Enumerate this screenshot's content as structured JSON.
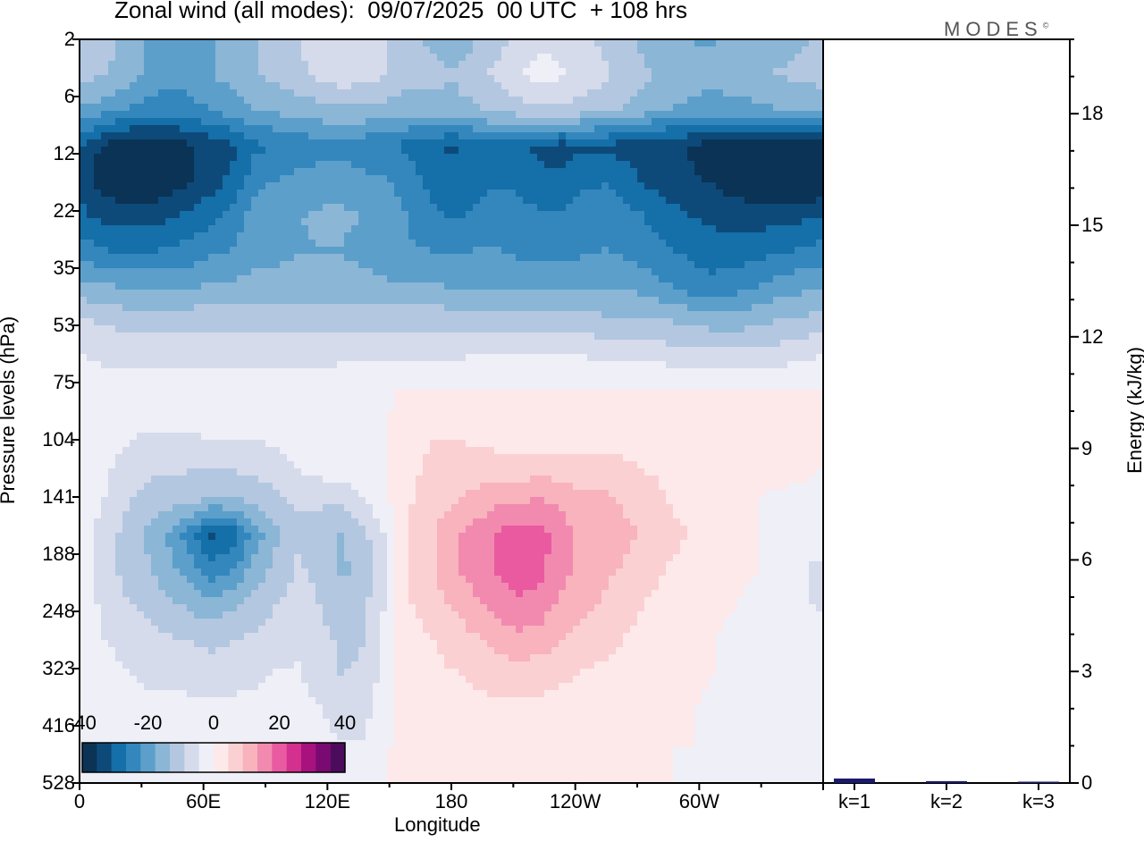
{
  "title": "Zonal wind (all modes):  09/07/2025  00 UTC  + 108 hrs",
  "brand": "MODES",
  "brand_mark": "©",
  "chart_data": [
    {
      "type": "heatmap",
      "variable": "Zonal wind",
      "xlabel": "Longitude",
      "ylabel": "Pressure levels (hPa)",
      "x_ticks": [
        "0",
        "60E",
        "120E",
        "180",
        "120W",
        "60W"
      ],
      "y_ticks": [
        "2",
        "6",
        "12",
        "22",
        "35",
        "53",
        "75",
        "104",
        "141",
        "188",
        "248",
        "323",
        "416",
        "528"
      ],
      "colorbar": {
        "ticks": [
          "-40",
          "-20",
          "0",
          "20",
          "40"
        ],
        "colors": [
          "#0a3355",
          "#0d4a7a",
          "#156fa8",
          "#3387bd",
          "#5c9fcb",
          "#8bb6d6",
          "#b3c7e0",
          "#d5dbeb",
          "#efeff7",
          "#fde9ea",
          "#fbd0d3",
          "#f8b3bd",
          "#f28ab0",
          "#e95aa0",
          "#d4308f",
          "#a8127e",
          "#7a0a72",
          "#4d0b5c"
        ],
        "range": [
          -40,
          40
        ]
      },
      "grid_values": [
        [
          -10,
          -11,
          -14,
          -18,
          -22,
          -21,
          -18,
          -16,
          -14,
          -12,
          -9,
          -6,
          -5,
          -7,
          -9,
          -12,
          -14,
          -16,
          -14,
          -11,
          -7,
          -5,
          -6,
          -8,
          -10,
          -12,
          -15,
          -17,
          -18,
          -18,
          -17,
          -16,
          -15,
          -14,
          -13
        ],
        [
          -12,
          -13,
          -15,
          -18,
          -21,
          -20,
          -18,
          -16,
          -14,
          -12,
          -10,
          -8,
          -6,
          -7,
          -9,
          -12,
          -12,
          -13,
          -11,
          -8,
          -5,
          -3,
          -4,
          -6,
          -8,
          -10,
          -13,
          -15,
          -16,
          -16,
          -15,
          -14,
          -13,
          -12,
          -11
        ],
        [
          -18,
          -20,
          -22,
          -24,
          -25,
          -24,
          -22,
          -20,
          -18,
          -17,
          -16,
          -15,
          -14,
          -14,
          -15,
          -16,
          -15,
          -15,
          -14,
          -12,
          -11,
          -10,
          -10,
          -11,
          -12,
          -14,
          -16,
          -18,
          -19,
          -20,
          -20,
          -19,
          -18,
          -18,
          -17
        ],
        [
          -30,
          -36,
          -39,
          -40,
          -38,
          -36,
          -34,
          -32,
          -28,
          -26,
          -25,
          -24,
          -24,
          -25,
          -26,
          -28,
          -30,
          -32,
          -30,
          -28,
          -30,
          -32,
          -33,
          -32,
          -32,
          -33,
          -34,
          -35,
          -36,
          -38,
          -38,
          -40,
          -41,
          -40,
          -38
        ],
        [
          -32,
          -38,
          -40,
          -41,
          -39,
          -36,
          -33,
          -30,
          -24,
          -22,
          -21,
          -20,
          -20,
          -21,
          -22,
          -24,
          -28,
          -30,
          -29,
          -27,
          -28,
          -30,
          -30,
          -28,
          -27,
          -29,
          -32,
          -34,
          -35,
          -36,
          -38,
          -40,
          -41,
          -41,
          -40
        ],
        [
          -30,
          -32,
          -33,
          -33,
          -32,
          -30,
          -28,
          -25,
          -20,
          -18,
          -18,
          -17,
          -17,
          -18,
          -20,
          -22,
          -25,
          -27,
          -26,
          -24,
          -24,
          -26,
          -26,
          -24,
          -24,
          -25,
          -27,
          -29,
          -31,
          -32,
          -33,
          -33,
          -33,
          -32,
          -31
        ],
        [
          -24,
          -26,
          -27,
          -27,
          -26,
          -25,
          -23,
          -22,
          -20,
          -19,
          -18,
          -18,
          -18,
          -19,
          -20,
          -22,
          -22,
          -23,
          -22,
          -22,
          -23,
          -24,
          -24,
          -23,
          -22,
          -23,
          -25,
          -26,
          -28,
          -29,
          -29,
          -28,
          -27,
          -26,
          -25
        ],
        [
          -16,
          -17,
          -18,
          -18,
          -18,
          -18,
          -17,
          -17,
          -16,
          -16,
          -16,
          -16,
          -16,
          -16,
          -17,
          -17,
          -17,
          -18,
          -18,
          -18,
          -18,
          -18,
          -18,
          -18,
          -18,
          -18,
          -20,
          -22,
          -24,
          -25,
          -24,
          -22,
          -20,
          -19,
          -18
        ],
        [
          -8,
          -9,
          -10,
          -10,
          -10,
          -10,
          -10,
          -10,
          -10,
          -10,
          -10,
          -10,
          -10,
          -10,
          -10,
          -10,
          -10,
          -10,
          -10,
          -10,
          -10,
          -10,
          -10,
          -11,
          -12,
          -12,
          -12,
          -13,
          -14,
          -15,
          -15,
          -14,
          -13,
          -12,
          -11
        ],
        [
          -4,
          -5,
          -6,
          -6,
          -6,
          -6,
          -6,
          -6,
          -6,
          -6,
          -6,
          -6,
          -5,
          -5,
          -5,
          -5,
          -5,
          -5,
          -4,
          -4,
          -4,
          -4,
          -4,
          -4,
          -5,
          -5,
          -5,
          -6,
          -6,
          -7,
          -7,
          -7,
          -6,
          -5,
          -4
        ],
        [
          -1,
          -2,
          -2,
          -2,
          -2,
          -2,
          -2,
          -2,
          -2,
          -2,
          -2,
          -1,
          -1,
          -1,
          -1,
          1,
          1,
          1,
          1,
          1,
          1,
          1,
          1,
          1,
          1,
          1,
          1,
          1,
          1,
          1,
          1,
          1,
          1,
          1,
          0
        ],
        [
          0,
          -1,
          -3,
          -4,
          -4,
          -4,
          -3,
          -3,
          -3,
          -3,
          -2,
          -1,
          -1,
          -1,
          0,
          2,
          4,
          4,
          3,
          2,
          2,
          2,
          2,
          2,
          2,
          2,
          2,
          1,
          1,
          2,
          3,
          4,
          4,
          2,
          1
        ],
        [
          -1,
          -3,
          -6,
          -8,
          -8,
          -8,
          -8,
          -8,
          -7,
          -6,
          -4,
          -2,
          -1,
          -1,
          0,
          3,
          5,
          6,
          6,
          6,
          6,
          6,
          6,
          6,
          6,
          5,
          4,
          4,
          3,
          3,
          3,
          3,
          2,
          1,
          0
        ],
        [
          -2,
          -4,
          -8,
          -10,
          -11,
          -12,
          -14,
          -14,
          -12,
          -10,
          -8,
          -8,
          -8,
          -4,
          -1,
          4,
          6,
          8,
          10,
          12,
          12,
          14,
          12,
          10,
          10,
          8,
          6,
          4,
          3,
          2,
          1,
          0,
          -1,
          -1,
          -1
        ],
        [
          -2,
          -6,
          -10,
          -14,
          -18,
          -24,
          -32,
          -30,
          -20,
          -14,
          -10,
          -12,
          -14,
          -10,
          -4,
          5,
          8,
          12,
          15,
          18,
          21,
          20,
          16,
          12,
          12,
          10,
          8,
          6,
          4,
          2,
          1,
          0,
          -1,
          -2,
          -2
        ],
        [
          -2,
          -6,
          -10,
          -12,
          -16,
          -20,
          -25,
          -22,
          -16,
          -12,
          -8,
          -10,
          -14,
          -12,
          -5,
          5,
          8,
          12,
          15,
          18,
          20,
          19,
          15,
          12,
          10,
          8,
          6,
          4,
          3,
          2,
          1,
          0,
          -1,
          -4,
          -6
        ],
        [
          -2,
          -5,
          -8,
          -10,
          -12,
          -14,
          -16,
          -14,
          -11,
          -9,
          -7,
          -9,
          -12,
          -10,
          -4,
          4,
          6,
          9,
          12,
          15,
          17,
          16,
          12,
          10,
          8,
          6,
          4,
          3,
          2,
          1,
          0,
          -1,
          -2,
          -4,
          -5
        ],
        [
          -2,
          -4,
          -6,
          -7,
          -8,
          -9,
          -10,
          -9,
          -8,
          -6,
          -5,
          -7,
          -10,
          -9,
          -3,
          3,
          4,
          6,
          8,
          10,
          12,
          11,
          9,
          7,
          6,
          4,
          3,
          2,
          1,
          0,
          -1,
          -1,
          -2,
          -3,
          -3
        ],
        [
          -1,
          -2,
          -4,
          -5,
          -5,
          -6,
          -6,
          -6,
          -5,
          -4,
          -4,
          -6,
          -9,
          -8,
          -2,
          2,
          3,
          4,
          5,
          6,
          6,
          6,
          5,
          4,
          3,
          2,
          2,
          1,
          1,
          0,
          -1,
          -2,
          -2,
          -3,
          -2
        ],
        [
          -1,
          -2,
          -2,
          -3,
          -3,
          -3,
          -3,
          -3,
          -3,
          -3,
          -3,
          -4,
          -7,
          -6,
          -1,
          1,
          2,
          3,
          3,
          3,
          3,
          3,
          3,
          3,
          2,
          2,
          1,
          1,
          0,
          -1,
          -2,
          -2,
          -2,
          -2,
          -1
        ],
        [
          0,
          -1,
          -1,
          -2,
          -2,
          -2,
          -2,
          -2,
          -2,
          -2,
          -2,
          -2,
          -4,
          -4,
          0,
          0,
          1,
          2,
          2,
          2,
          2,
          2,
          2,
          2,
          1,
          1,
          1,
          0,
          0,
          -1,
          -1,
          -2,
          -2,
          -1,
          -1
        ],
        [
          0,
          -1,
          -1,
          -1,
          -1,
          -1,
          -1,
          -1,
          -1,
          -1,
          -1,
          -1,
          -1,
          -1,
          0,
          0,
          0,
          1,
          1,
          1,
          1,
          1,
          1,
          1,
          1,
          0,
          0,
          0,
          -1,
          -1,
          -1,
          -1,
          -1,
          -1,
          0
        ]
      ]
    },
    {
      "type": "bar",
      "ylabel": "Energy (kJ/kg)",
      "categories": [
        "k=1",
        "k=2",
        "k=3"
      ],
      "values": [
        0.12,
        0.05,
        0.03
      ],
      "ylim": [
        0,
        20
      ],
      "y_ticks": [
        "0",
        "3",
        "6",
        "9",
        "12",
        "15",
        "18"
      ],
      "bar_color": "#1a1a6e"
    }
  ]
}
